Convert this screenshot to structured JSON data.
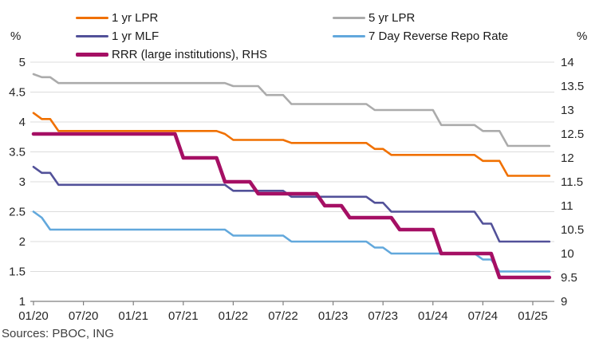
{
  "legend": {
    "col1": [
      {
        "label": "1 yr LPR",
        "color": "#F07000",
        "thick": false
      },
      {
        "label": "1 yr MLF",
        "color": "#525199",
        "thick": false
      },
      {
        "label": "RRR (large institutions), RHS",
        "color": "#A50F64",
        "thick": true
      }
    ],
    "col2": [
      {
        "label": "5 yr LPR",
        "color": "#ABABAB",
        "thick": false
      },
      {
        "label": "7 Day Reverse Repo Rate",
        "color": "#62A8DC",
        "thick": false
      }
    ]
  },
  "axes": {
    "left_unit": "%",
    "right_unit": "%",
    "left_ticks": [
      "5",
      "4.5",
      "4",
      "3.5",
      "3",
      "2.5",
      "2",
      "1.5",
      "1"
    ],
    "right_ticks": [
      "14",
      "13.5",
      "13",
      "12.5",
      "12",
      "11.5",
      "11",
      "10.5",
      "10",
      "9.5",
      "9"
    ],
    "x_ticks": [
      "01/20",
      "07/20",
      "01/21",
      "07/21",
      "01/22",
      "07/22",
      "01/23",
      "07/23",
      "01/24",
      "07/24",
      "01/25"
    ]
  },
  "footer": {
    "sources": "Sources: PBOC, ING"
  },
  "colors": {
    "gridline": "#DCDCDC",
    "axis_line": "#7F7F7F",
    "text": "#262626"
  },
  "chart_data": {
    "type": "line",
    "x_frequency": "monthly",
    "x_first_month": "01/20",
    "x_last_month": "03/25",
    "left_axis_range": [
      1,
      5
    ],
    "right_axis_range": [
      9,
      14
    ],
    "grid": "horizontal",
    "legend_position": "top",
    "series": [
      {
        "name": "5 yr LPR",
        "axis": "left",
        "color": "#ABABAB",
        "thick": false,
        "values": [
          4.8,
          4.75,
          4.75,
          4.65,
          4.65,
          4.65,
          4.65,
          4.65,
          4.65,
          4.65,
          4.65,
          4.65,
          4.65,
          4.65,
          4.65,
          4.65,
          4.65,
          4.65,
          4.65,
          4.65,
          4.65,
          4.65,
          4.65,
          4.65,
          4.6,
          4.6,
          4.6,
          4.6,
          4.45,
          4.45,
          4.45,
          4.3,
          4.3,
          4.3,
          4.3,
          4.3,
          4.3,
          4.3,
          4.3,
          4.3,
          4.3,
          4.2,
          4.2,
          4.2,
          4.2,
          4.2,
          4.2,
          4.2,
          4.2,
          3.95,
          3.95,
          3.95,
          3.95,
          3.95,
          3.85,
          3.85,
          3.85,
          3.6,
          3.6,
          3.6,
          3.6,
          3.6,
          3.6
        ]
      },
      {
        "name": "7 Day Reverse Repo Rate",
        "axis": "left",
        "color": "#62A8DC",
        "thick": false,
        "values": [
          2.5,
          2.4,
          2.2,
          2.2,
          2.2,
          2.2,
          2.2,
          2.2,
          2.2,
          2.2,
          2.2,
          2.2,
          2.2,
          2.2,
          2.2,
          2.2,
          2.2,
          2.2,
          2.2,
          2.2,
          2.2,
          2.2,
          2.2,
          2.2,
          2.1,
          2.1,
          2.1,
          2.1,
          2.1,
          2.1,
          2.1,
          2.0,
          2.0,
          2.0,
          2.0,
          2.0,
          2.0,
          2.0,
          2.0,
          2.0,
          2.0,
          1.9,
          1.9,
          1.8,
          1.8,
          1.8,
          1.8,
          1.8,
          1.8,
          1.8,
          1.8,
          1.8,
          1.8,
          1.8,
          1.7,
          1.7,
          1.5,
          1.5,
          1.5,
          1.5,
          1.5,
          1.5,
          1.5
        ]
      },
      {
        "name": "1 yr MLF",
        "axis": "left",
        "color": "#525199",
        "thick": false,
        "values": [
          3.25,
          3.15,
          3.15,
          2.95,
          2.95,
          2.95,
          2.95,
          2.95,
          2.95,
          2.95,
          2.95,
          2.95,
          2.95,
          2.95,
          2.95,
          2.95,
          2.95,
          2.95,
          2.95,
          2.95,
          2.95,
          2.95,
          2.95,
          2.95,
          2.85,
          2.85,
          2.85,
          2.85,
          2.85,
          2.85,
          2.85,
          2.75,
          2.75,
          2.75,
          2.75,
          2.75,
          2.75,
          2.75,
          2.75,
          2.75,
          2.75,
          2.65,
          2.65,
          2.5,
          2.5,
          2.5,
          2.5,
          2.5,
          2.5,
          2.5,
          2.5,
          2.5,
          2.5,
          2.5,
          2.3,
          2.3,
          2.0,
          2.0,
          2.0,
          2.0,
          2.0,
          2.0,
          2.0
        ]
      },
      {
        "name": "1 yr LPR",
        "axis": "left",
        "color": "#F07000",
        "thick": false,
        "values": [
          4.15,
          4.05,
          4.05,
          3.85,
          3.85,
          3.85,
          3.85,
          3.85,
          3.85,
          3.85,
          3.85,
          3.85,
          3.85,
          3.85,
          3.85,
          3.85,
          3.85,
          3.85,
          3.85,
          3.85,
          3.85,
          3.85,
          3.85,
          3.8,
          3.7,
          3.7,
          3.7,
          3.7,
          3.7,
          3.7,
          3.7,
          3.65,
          3.65,
          3.65,
          3.65,
          3.65,
          3.65,
          3.65,
          3.65,
          3.65,
          3.65,
          3.55,
          3.55,
          3.45,
          3.45,
          3.45,
          3.45,
          3.45,
          3.45,
          3.45,
          3.45,
          3.45,
          3.45,
          3.45,
          3.35,
          3.35,
          3.35,
          3.1,
          3.1,
          3.1,
          3.1,
          3.1,
          3.1
        ]
      },
      {
        "name": "RRR (large institutions), RHS",
        "axis": "right",
        "color": "#A50F64",
        "thick": true,
        "values": [
          12.5,
          12.5,
          12.5,
          12.5,
          12.5,
          12.5,
          12.5,
          12.5,
          12.5,
          12.5,
          12.5,
          12.5,
          12.5,
          12.5,
          12.5,
          12.5,
          12.5,
          12.5,
          12.0,
          12.0,
          12.0,
          12.0,
          12.0,
          11.5,
          11.5,
          11.5,
          11.5,
          11.25,
          11.25,
          11.25,
          11.25,
          11.25,
          11.25,
          11.25,
          11.25,
          11.0,
          11.0,
          11.0,
          10.75,
          10.75,
          10.75,
          10.75,
          10.75,
          10.75,
          10.5,
          10.5,
          10.5,
          10.5,
          10.5,
          10.0,
          10.0,
          10.0,
          10.0,
          10.0,
          10.0,
          10.0,
          9.5,
          9.5,
          9.5,
          9.5,
          9.5,
          9.5,
          9.5
        ]
      }
    ]
  }
}
